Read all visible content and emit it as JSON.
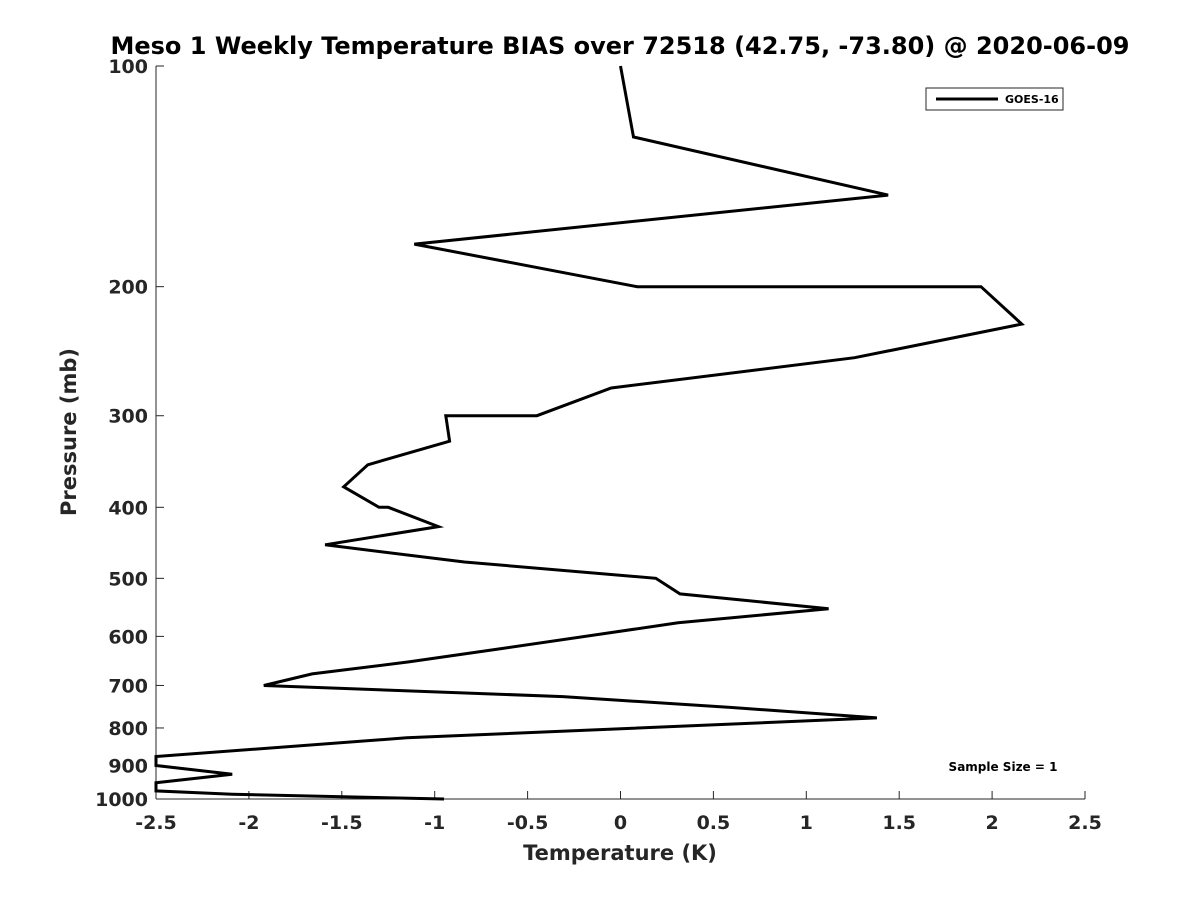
{
  "chart_data": {
    "type": "line",
    "title": "Meso 1 Weekly Temperature BIAS over 72518 (42.75, -73.80) @ 2020-06-09",
    "xlabel": "Temperature (K)",
    "ylabel": "Pressure (mb)",
    "xlim": [
      -2.5,
      2.5
    ],
    "ylim": [
      100,
      1000
    ],
    "yscale": "log",
    "x_ticks": [
      -2.5,
      -2,
      -1.5,
      -1,
      -0.5,
      0,
      0.5,
      1,
      1.5,
      2,
      2.5
    ],
    "x_tick_labels": [
      "-2.5",
      "-2",
      "-1.5",
      "-1",
      "-0.5",
      "0",
      "0.5",
      "1",
      "1.5",
      "2",
      "2.5"
    ],
    "y_ticks": [
      100,
      200,
      300,
      400,
      500,
      600,
      700,
      800,
      900,
      1000
    ],
    "y_tick_labels": [
      "100",
      "200",
      "300",
      "400",
      "500",
      "600",
      "700",
      "800",
      "900",
      "1000"
    ],
    "legend_position": "top-right",
    "annotation": "Sample Size = 1",
    "series": [
      {
        "name": "GOES-16",
        "color": "#000000",
        "points": [
          {
            "t": 0.0,
            "p": 100
          },
          {
            "t": 0.07,
            "p": 125
          },
          {
            "t": 1.44,
            "p": 150
          },
          {
            "t": -1.11,
            "p": 175
          },
          {
            "t": 0.09,
            "p": 200
          },
          {
            "t": 1.94,
            "p": 200
          },
          {
            "t": 2.16,
            "p": 225
          },
          {
            "t": 1.26,
            "p": 250
          },
          {
            "t": -0.05,
            "p": 275
          },
          {
            "t": -0.45,
            "p": 300
          },
          {
            "t": -0.94,
            "p": 300
          },
          {
            "t": -0.92,
            "p": 325
          },
          {
            "t": -1.36,
            "p": 350
          },
          {
            "t": -1.49,
            "p": 375
          },
          {
            "t": -1.3,
            "p": 400
          },
          {
            "t": -1.25,
            "p": 400
          },
          {
            "t": -0.98,
            "p": 425
          },
          {
            "t": -1.59,
            "p": 450
          },
          {
            "t": -0.84,
            "p": 475
          },
          {
            "t": 0.19,
            "p": 500
          },
          {
            "t": 0.32,
            "p": 525
          },
          {
            "t": 1.12,
            "p": 550
          },
          {
            "t": 0.31,
            "p": 575
          },
          {
            "t": -0.67,
            "p": 625
          },
          {
            "t": -1.14,
            "p": 650
          },
          {
            "t": -1.66,
            "p": 675
          },
          {
            "t": -1.92,
            "p": 700
          },
          {
            "t": -0.31,
            "p": 725
          },
          {
            "t": 0.59,
            "p": 750
          },
          {
            "t": 1.38,
            "p": 775
          },
          {
            "t": -1.15,
            "p": 825
          },
          {
            "t": -2.5,
            "p": 875
          },
          {
            "t": -2.5,
            "p": 900
          },
          {
            "t": -2.09,
            "p": 925
          },
          {
            "t": -2.5,
            "p": 950
          },
          {
            "t": -2.5,
            "p": 975
          },
          {
            "t": -2.09,
            "p": 985
          },
          {
            "t": -0.95,
            "p": 1000
          }
        ]
      }
    ]
  }
}
